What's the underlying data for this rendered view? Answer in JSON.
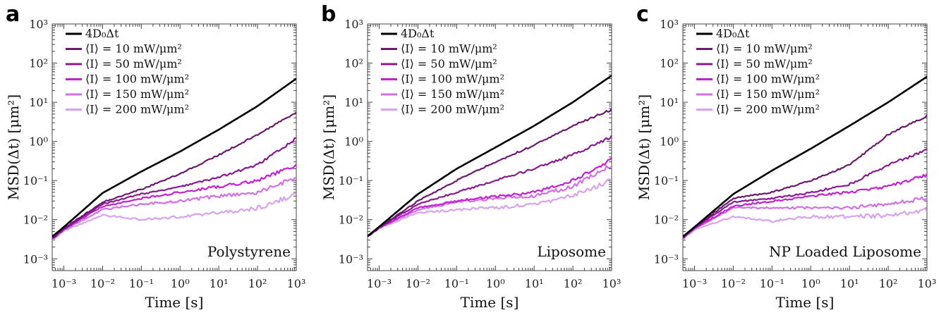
{
  "chart_data": [
    {
      "type": "line",
      "panel_label": "a",
      "annotation": "Polystyrene",
      "xlabel": "Time [s]",
      "ylabel": "MSD(Δt)  [μm²]",
      "xscale": "log",
      "yscale": "log",
      "xlim": [
        0.0005,
        1000
      ],
      "ylim": [
        0.0005,
        1000
      ],
      "xticks": [
        "10⁻³",
        "10⁻²",
        "10⁻¹",
        "10⁰",
        "10¹",
        "10²",
        "10³"
      ],
      "yticks": [
        "10⁻³",
        "10⁻²",
        "10⁻¹",
        "10⁰",
        "10¹",
        "10²",
        "10³"
      ],
      "legend": "top-left",
      "series": [
        {
          "name": "4D₀Δt",
          "color": "#000000",
          "x": [
            0.0005,
            0.001,
            0.01,
            0.1,
            1,
            10,
            100,
            1000
          ],
          "y": [
            0.0037,
            0.0065,
            0.048,
            0.17,
            0.55,
            2.0,
            8.0,
            40
          ]
        },
        {
          "name": "⟨I⟩ = 10 mW/μm²",
          "color": "#6a1b6e",
          "x": [
            0.0005,
            0.001,
            0.01,
            0.1,
            1,
            10,
            100,
            1000
          ],
          "y": [
            0.0034,
            0.006,
            0.028,
            0.06,
            0.15,
            0.45,
            1.5,
            5.5
          ]
        },
        {
          "name": "⟨I⟩ = 50 mW/μm²",
          "color": "#8a1a8f",
          "x": [
            0.0005,
            0.001,
            0.01,
            0.1,
            1,
            10,
            100,
            1000
          ],
          "y": [
            0.0033,
            0.0058,
            0.025,
            0.045,
            0.07,
            0.12,
            0.25,
            1.2
          ]
        },
        {
          "name": "⟨I⟩ = 100 mW/μm²",
          "color": "#c41fd4",
          "x": [
            0.0005,
            0.001,
            0.01,
            0.1,
            1,
            10,
            100,
            1000
          ],
          "y": [
            0.0032,
            0.0056,
            0.022,
            0.035,
            0.05,
            0.07,
            0.1,
            0.25
          ]
        },
        {
          "name": "⟨I⟩ = 150 mW/μm²",
          "color": "#d270ea",
          "x": [
            0.0005,
            0.001,
            0.01,
            0.1,
            1,
            10,
            100,
            1000
          ],
          "y": [
            0.0031,
            0.0054,
            0.018,
            0.025,
            0.03,
            0.04,
            0.05,
            0.12
          ]
        },
        {
          "name": "⟨I⟩ = 200 mW/μm²",
          "color": "#d9a2f0",
          "x": [
            0.0005,
            0.001,
            0.01,
            0.1,
            1,
            10,
            100,
            1000
          ],
          "y": [
            0.003,
            0.0052,
            0.013,
            0.01,
            0.012,
            0.015,
            0.02,
            0.045
          ]
        }
      ]
    },
    {
      "type": "line",
      "panel_label": "b",
      "annotation": "Liposome",
      "xlabel": "Time [s]",
      "ylabel": "MSD(Δt)  [μm²]",
      "xscale": "log",
      "yscale": "log",
      "xlim": [
        0.0005,
        1000
      ],
      "ylim": [
        0.0005,
        1000
      ],
      "xticks": [
        "10⁻³",
        "10⁻²",
        "10⁻¹",
        "10⁰",
        "10¹",
        "10²",
        "10³"
      ],
      "yticks": [
        "10⁻³",
        "10⁻²",
        "10⁻¹",
        "10⁰",
        "10¹",
        "10²",
        "10³"
      ],
      "legend": "top-left",
      "series": [
        {
          "name": "4D₀Δt",
          "color": "#000000",
          "x": [
            0.0005,
            0.001,
            0.01,
            0.1,
            1,
            10,
            100,
            1000
          ],
          "y": [
            0.0038,
            0.0066,
            0.045,
            0.2,
            0.7,
            2.5,
            10,
            48
          ]
        },
        {
          "name": "⟨I⟩ = 10 mW/μm²",
          "color": "#6a1b6e",
          "x": [
            0.0005,
            0.001,
            0.01,
            0.1,
            1,
            10,
            100,
            1000
          ],
          "y": [
            0.0037,
            0.0064,
            0.03,
            0.1,
            0.3,
            0.8,
            2.5,
            6.5
          ]
        },
        {
          "name": "⟨I⟩ = 50 mW/μm²",
          "color": "#8a1a8f",
          "x": [
            0.0005,
            0.001,
            0.01,
            0.1,
            1,
            10,
            100,
            1000
          ],
          "y": [
            0.0037,
            0.0063,
            0.025,
            0.05,
            0.1,
            0.2,
            0.45,
            1.3
          ]
        },
        {
          "name": "⟨I⟩ = 100 mW/μm²",
          "color": "#c41fd4",
          "x": [
            0.0005,
            0.001,
            0.01,
            0.1,
            1,
            10,
            100,
            1000
          ],
          "y": [
            0.0037,
            0.0062,
            0.02,
            0.03,
            0.04,
            0.05,
            0.1,
            0.35
          ]
        },
        {
          "name": "⟨I⟩ = 150 mW/μm²",
          "color": "#d270ea",
          "x": [
            0.0005,
            0.001,
            0.01,
            0.1,
            1,
            10,
            100,
            1000
          ],
          "y": [
            0.0037,
            0.0061,
            0.018,
            0.028,
            0.035,
            0.04,
            0.07,
            0.25
          ]
        },
        {
          "name": "⟨I⟩ = 200 mW/μm²",
          "color": "#d9a2f0",
          "x": [
            0.0005,
            0.001,
            0.01,
            0.1,
            1,
            10,
            100,
            1000
          ],
          "y": [
            0.0037,
            0.006,
            0.015,
            0.018,
            0.02,
            0.025,
            0.04,
            0.1
          ]
        }
      ]
    },
    {
      "type": "line",
      "panel_label": "c",
      "annotation": "NP Loaded Liposome",
      "xlabel": "Time [s]",
      "ylabel": "MSD(Δt)  [μm²]",
      "xscale": "log",
      "yscale": "log",
      "xlim": [
        0.0005,
        1000
      ],
      "ylim": [
        0.0005,
        1000
      ],
      "xticks": [
        "10⁻³",
        "10⁻²",
        "10⁻¹",
        "10⁰",
        "10¹",
        "10²",
        "10³"
      ],
      "yticks": [
        "10⁻³",
        "10⁻²",
        "10⁻¹",
        "10⁰",
        "10¹",
        "10²",
        "10³"
      ],
      "legend": "top-left",
      "series": [
        {
          "name": "4D₀Δt",
          "color": "#000000",
          "x": [
            0.0005,
            0.001,
            0.01,
            0.1,
            1,
            10,
            100,
            1000
          ],
          "y": [
            0.0037,
            0.0065,
            0.045,
            0.18,
            0.65,
            2.5,
            10,
            45
          ]
        },
        {
          "name": "⟨I⟩ = 10 mW/μm²",
          "color": "#6a1b6e",
          "x": [
            0.0005,
            0.001,
            0.01,
            0.1,
            1,
            10,
            100,
            1000
          ],
          "y": [
            0.0036,
            0.0063,
            0.035,
            0.05,
            0.1,
            0.25,
            1.5,
            4.5
          ]
        },
        {
          "name": "⟨I⟩ = 50 mW/μm²",
          "color": "#8a1a8f",
          "x": [
            0.0005,
            0.001,
            0.01,
            0.1,
            1,
            10,
            100,
            1000
          ],
          "y": [
            0.0035,
            0.0062,
            0.028,
            0.035,
            0.05,
            0.08,
            0.25,
            0.6
          ]
        },
        {
          "name": "⟨I⟩ = 100 mW/μm²",
          "color": "#c41fd4",
          "x": [
            0.0005,
            0.001,
            0.01,
            0.1,
            1,
            10,
            100,
            1000
          ],
          "y": [
            0.0034,
            0.006,
            0.022,
            0.03,
            0.04,
            0.05,
            0.07,
            0.14
          ]
        },
        {
          "name": "⟨I⟩ = 150 mW/μm²",
          "color": "#d270ea",
          "x": [
            0.0005,
            0.001,
            0.01,
            0.1,
            1,
            10,
            100,
            1000
          ],
          "y": [
            0.0033,
            0.0058,
            0.02,
            0.02,
            0.02,
            0.02,
            0.025,
            0.035
          ]
        },
        {
          "name": "⟨I⟩ = 200 mW/μm²",
          "color": "#d9a2f0",
          "x": [
            0.0005,
            0.001,
            0.01,
            0.1,
            1,
            10,
            100,
            1000
          ],
          "y": [
            0.0032,
            0.0055,
            0.012,
            0.009,
            0.012,
            0.012,
            0.013,
            0.018
          ]
        }
      ]
    }
  ]
}
